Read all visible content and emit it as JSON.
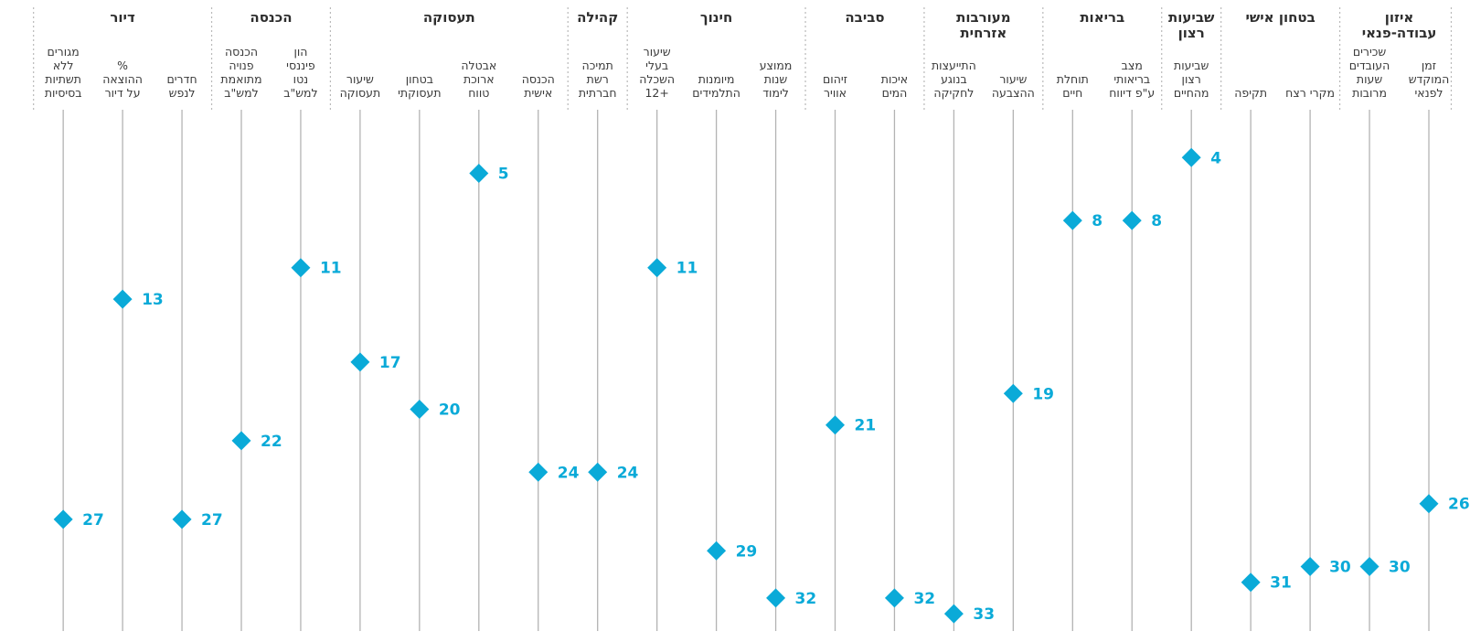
{
  "chart_data": {
    "type": "scatter",
    "title": "",
    "xlabel": "",
    "ylabel": "",
    "ylim": [
      1,
      34
    ],
    "y_direction": "rank, 1 at top",
    "accent_color": "#0aaad8",
    "stem_color": "#b3b3b3",
    "groups": [
      {
        "name": "איזון\nעבודה-פנאי",
        "indicators": [
          {
            "label": "זמן\nהמוקדש\nלפנאי",
            "value": 26
          },
          {
            "label": "שכירים\nהעובדים\nשעות\nמרובות",
            "value": 30
          }
        ]
      },
      {
        "name": "בטחון אישי",
        "indicators": [
          {
            "label": "מקרי רצח",
            "value": 30
          },
          {
            "label": "תקיפה",
            "value": 31
          }
        ]
      },
      {
        "name": "שביעות\nרצון",
        "indicators": [
          {
            "label": "שביעות\nרצון\nמהחיים",
            "value": 4
          }
        ]
      },
      {
        "name": "בריאות",
        "indicators": [
          {
            "label": "מצב\nבריאותי\nע\"פ דיווח",
            "value": 8
          },
          {
            "label": "תוחלת\nחיים",
            "value": 8
          }
        ]
      },
      {
        "name": "מעורבות\nאזרחית",
        "indicators": [
          {
            "label": "שיעור\nההצבעה",
            "value": 19
          },
          {
            "label": "התייעצות\nבנוגע\nלחקיקה",
            "value": 33
          }
        ]
      },
      {
        "name": "סביבה",
        "indicators": [
          {
            "label": "איכות\nהמים",
            "value": 32
          },
          {
            "label": "זיהום\nאוויר",
            "value": 21
          }
        ]
      },
      {
        "name": "חינוך",
        "indicators": [
          {
            "label": "ממוצע\nשנות\nלימוד",
            "value": 32
          },
          {
            "label": "מיומנות\nהתלמידים",
            "value": 29
          },
          {
            "label": "שיעור\nבעלי\nהשכלה\n+12",
            "value": 11
          }
        ]
      },
      {
        "name": "קהילה",
        "indicators": [
          {
            "label": "תמיכה\nרשת\nחברתית",
            "value": 24
          }
        ]
      },
      {
        "name": "תעסוקה",
        "indicators": [
          {
            "label": "הכנסה\nאישית",
            "value": 24
          },
          {
            "label": "אבטלה\nארוכת\nטווח",
            "value": 5
          },
          {
            "label": "בטחון\nתעסוקתי",
            "value": 20
          },
          {
            "label": "שיעור\nתעסוקה",
            "value": 17
          }
        ]
      },
      {
        "name": "הכנסה",
        "indicators": [
          {
            "label": "הון\nפיננסי\nנטו\nלמש\"ב",
            "value": 11
          },
          {
            "label": "הכנסה\nפנויה\nמתואמת\nלמש\"ב",
            "value": 22
          }
        ]
      },
      {
        "name": "דיור",
        "indicators": [
          {
            "label": "חדרים\nלנפש",
            "value": 27
          },
          {
            "label": "%\nההוצאה\nעל דיור",
            "value": 13
          },
          {
            "label": "מגורים\nללא\nתשתיות\nבסיסיות",
            "value": 27
          }
        ]
      }
    ]
  }
}
